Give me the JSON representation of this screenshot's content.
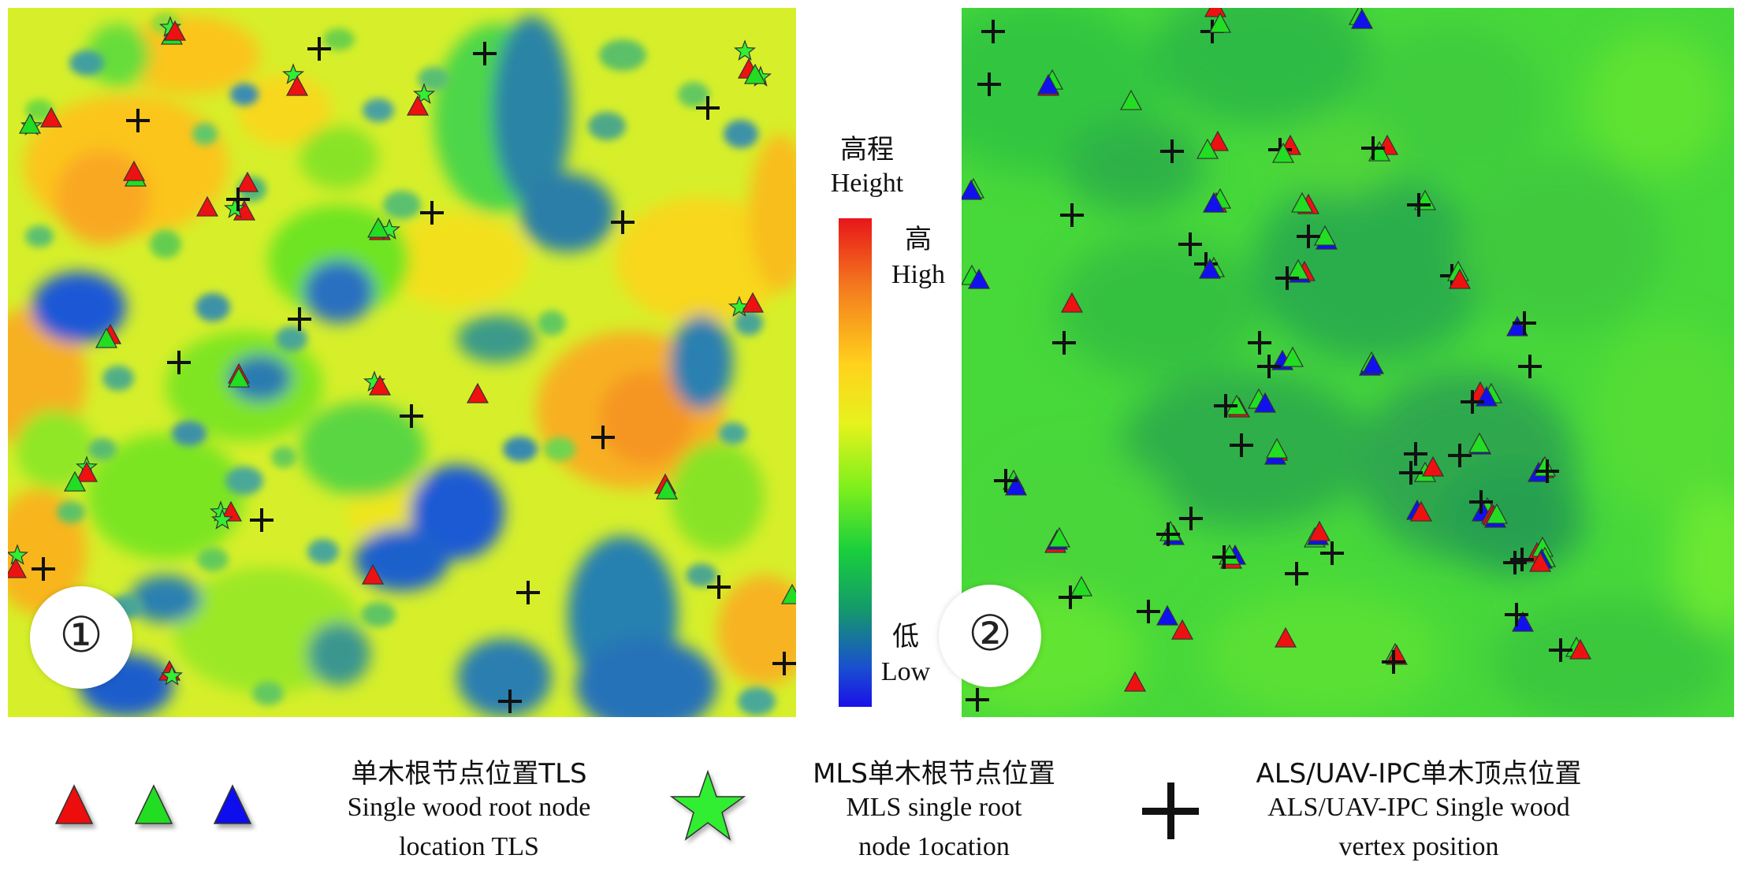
{
  "panels": [
    {
      "id": "panel-1",
      "label": "①",
      "theme": "elevation-detailed"
    },
    {
      "id": "panel-2",
      "label": "②",
      "theme": "elevation-smooth"
    }
  ],
  "colorbar": {
    "title_cn": "高程",
    "title_en": "Height",
    "high_cn": "高",
    "high_en": "High",
    "low_cn": "低",
    "low_en": "Low",
    "gradient_colors": [
      "#e8161a",
      "#f47a1e",
      "#ffd21c",
      "#e6f21c",
      "#7ff01c",
      "#19cf3c",
      "#149a6a",
      "#1a4fd0",
      "#1a10e8"
    ]
  },
  "legend": {
    "tls": {
      "title": "单木根节点位置TLS",
      "line1": "Single wood root node",
      "line2": "location TLS",
      "marker_colors": [
        "#ee1111",
        "#22dd22",
        "#1111ee"
      ]
    },
    "mls": {
      "title": "MLS单木根节点位置",
      "line1": "MLS single root",
      "line2": "node 1ocation",
      "marker_color": "#33ee33"
    },
    "als": {
      "title": "ALS/UAV-IPC单木顶点位置",
      "line1": "ALS/UAV-IPC Single wood",
      "line2": "vertex position",
      "marker_color": "#111111"
    }
  }
}
